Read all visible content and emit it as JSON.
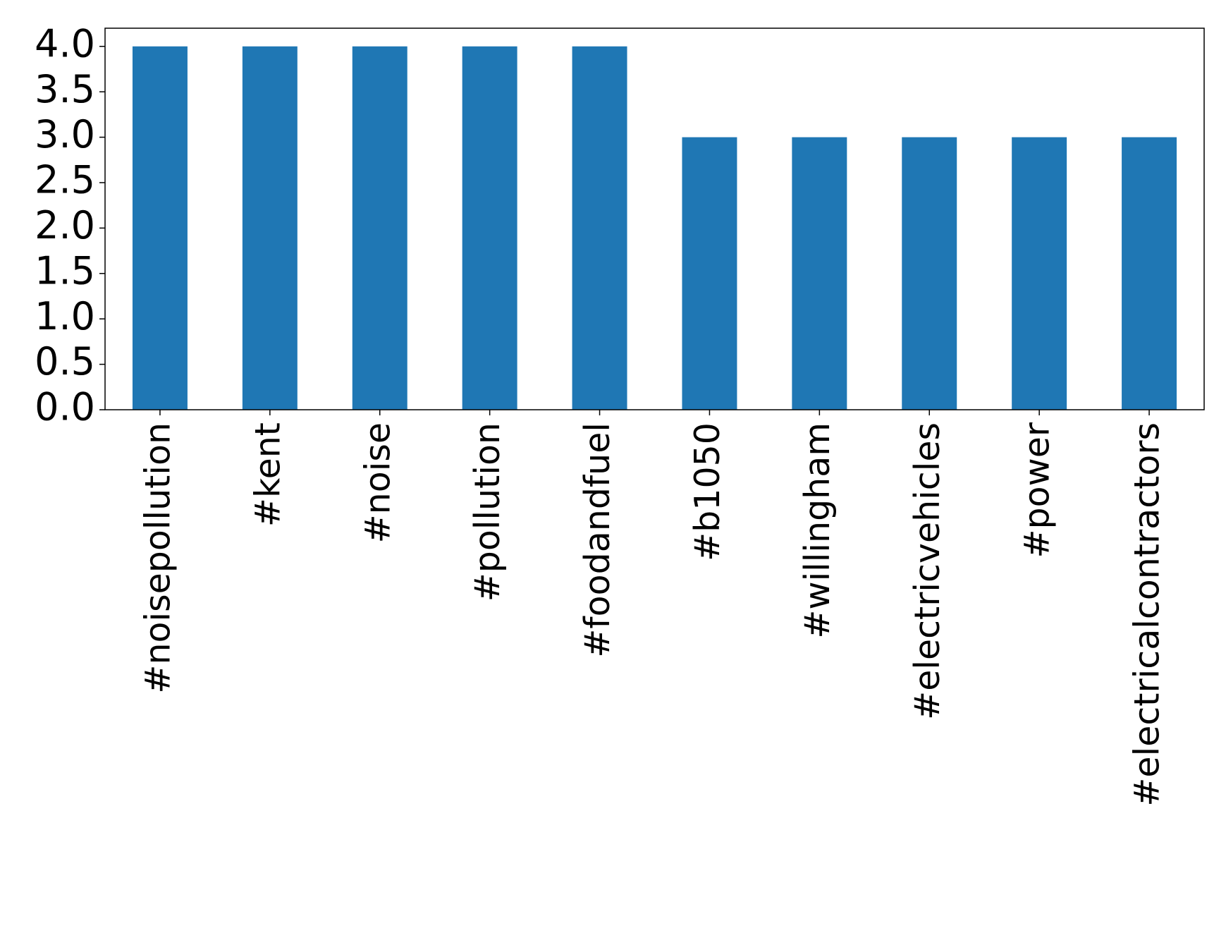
{
  "chart_data": {
    "type": "bar",
    "categories": [
      "#noisepollution",
      "#kent",
      "#noise",
      "#pollution",
      "#foodandfuel",
      "#b1050",
      "#willingham",
      "#electricvehicles",
      "#power",
      "#electricalcontractors"
    ],
    "values": [
      4,
      4,
      4,
      4,
      4,
      3,
      3,
      3,
      3,
      3
    ],
    "color": "#1f77b4",
    "ylim": [
      0,
      4.2
    ],
    "yticks": [
      {
        "value": 0,
        "label": "0.0"
      },
      0.5,
      {
        "value": 1,
        "label": "1.0"
      },
      1.5,
      {
        "value": 2,
        "label": "2.0"
      },
      2.5,
      {
        "value": 3,
        "label": "3.0"
      },
      3.5,
      {
        "value": 4,
        "label": "4.0"
      }
    ],
    "grid": false
  }
}
